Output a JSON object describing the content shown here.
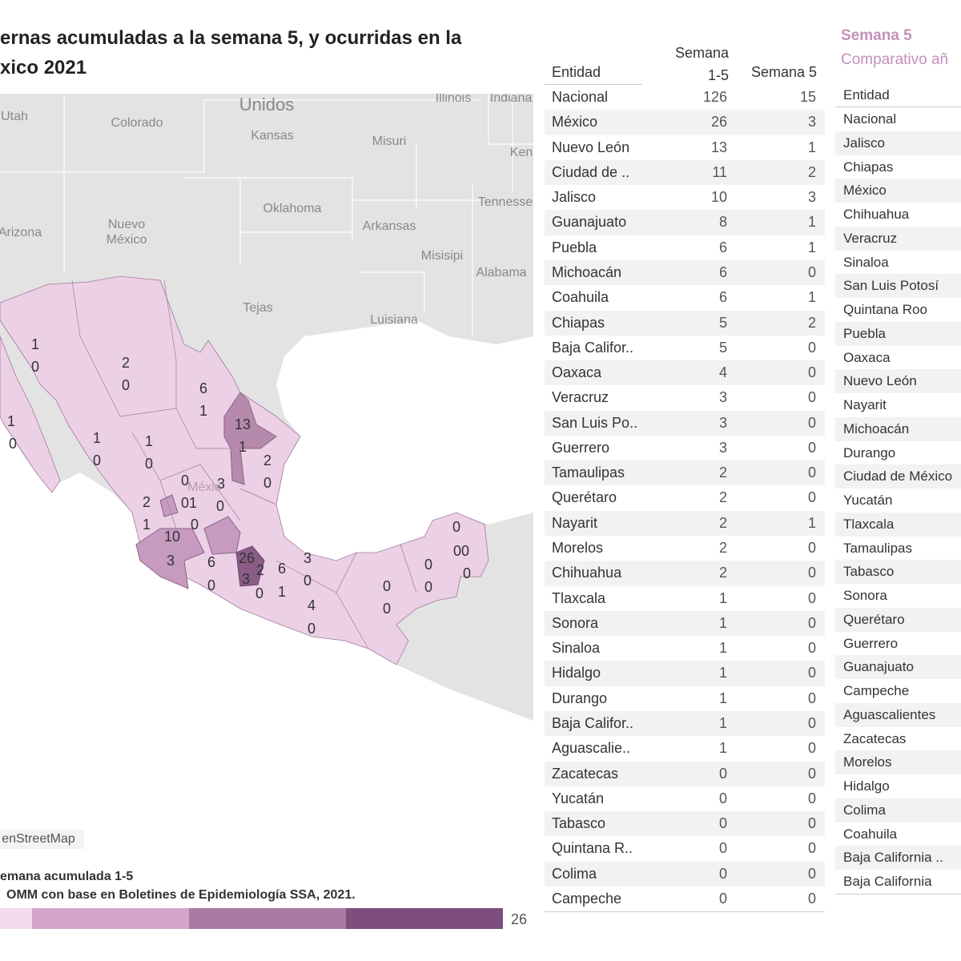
{
  "header": {
    "title_lines": [
      "ernas acumuladas a la semana 5, y ocurridas en la",
      "xico 2021"
    ]
  },
  "map": {
    "place_names": [
      "Utah",
      "Unidos",
      "Illinois",
      "Indiana",
      "Colorado",
      "Kansas",
      "Misuri",
      "Ken",
      "Tennesse",
      "Oklahoma",
      "Arkansas",
      "Arizona",
      "Nuevo",
      "México",
      "Misisipi",
      "Alabama",
      "Tejas",
      "Luisiana",
      "Méxic"
    ],
    "labels": [
      "1",
      "0",
      "2",
      "0",
      "6",
      "1",
      "13",
      "1",
      "1",
      "0",
      "1",
      "0",
      "1",
      "0",
      "2",
      "0",
      "0",
      "3",
      "0",
      "01",
      "0",
      "2",
      "1",
      "10",
      "3",
      "6",
      "0",
      "26",
      "3",
      "2",
      "0",
      "6",
      "1",
      "3",
      "0",
      "4",
      "0",
      "0",
      "0",
      "0",
      "0",
      "0",
      "00",
      "0"
    ],
    "attribution": "enStreetMap"
  },
  "legend": {
    "title": "emana acumulada 1-5",
    "source": "OMM con base en Boletines de Epidemiología SSA, 2021.",
    "max": 26
  },
  "table1": {
    "headers": [
      "Entidad",
      "Semana 1-5",
      "Semana 5"
    ],
    "rows": [
      [
        "Nacional",
        126,
        15
      ],
      [
        "México",
        26,
        3
      ],
      [
        "Nuevo León",
        13,
        1
      ],
      [
        "Ciudad de ..",
        11,
        2
      ],
      [
        "Jalisco",
        10,
        3
      ],
      [
        "Guanajuato",
        8,
        1
      ],
      [
        "Puebla",
        6,
        1
      ],
      [
        "Michoacán",
        6,
        0
      ],
      [
        "Coahuila",
        6,
        1
      ],
      [
        "Chiapas",
        5,
        2
      ],
      [
        "Baja Califor..",
        5,
        0
      ],
      [
        "Oaxaca",
        4,
        0
      ],
      [
        "Veracruz",
        3,
        0
      ],
      [
        "San Luis Po..",
        3,
        0
      ],
      [
        "Guerrero",
        3,
        0
      ],
      [
        "Tamaulipas",
        2,
        0
      ],
      [
        "Querétaro",
        2,
        0
      ],
      [
        "Nayarit",
        2,
        1
      ],
      [
        "Morelos",
        2,
        0
      ],
      [
        "Chihuahua",
        2,
        0
      ],
      [
        "Tlaxcala",
        1,
        0
      ],
      [
        "Sonora",
        1,
        0
      ],
      [
        "Sinaloa",
        1,
        0
      ],
      [
        "Hidalgo",
        1,
        0
      ],
      [
        "Durango",
        1,
        0
      ],
      [
        "Baja Califor..",
        1,
        0
      ],
      [
        "Aguascalie..",
        1,
        0
      ],
      [
        "Zacatecas",
        0,
        0
      ],
      [
        "Yucatán",
        0,
        0
      ],
      [
        "Tabasco",
        0,
        0
      ],
      [
        "Quintana R..",
        0,
        0
      ],
      [
        "Colima",
        0,
        0
      ],
      [
        "Campeche",
        0,
        0
      ]
    ]
  },
  "table2": {
    "title": "Semana 5",
    "subtitle": "Comparativo añ",
    "header": "Entidad",
    "rows": [
      "Nacional",
      "Jalisco",
      "Chiapas",
      "México",
      "Chihuahua",
      "Veracruz",
      "Sinaloa",
      "San Luis Potosí",
      "Quintana Roo",
      "Puebla",
      "Oaxaca",
      "Nuevo León",
      "Nayarit",
      "Michoacán",
      "Durango",
      "Ciudad de México",
      "Yucatán",
      "Tlaxcala",
      "Tamaulipas",
      "Tabasco",
      "Sonora",
      "Querétaro",
      "Guerrero",
      "Guanajuato",
      "Campeche",
      "Aguascalientes",
      "Zacatecas",
      "Morelos",
      "Hidalgo",
      "Colima",
      "Coahuila",
      "Baja California ..",
      "Baja California"
    ]
  }
}
